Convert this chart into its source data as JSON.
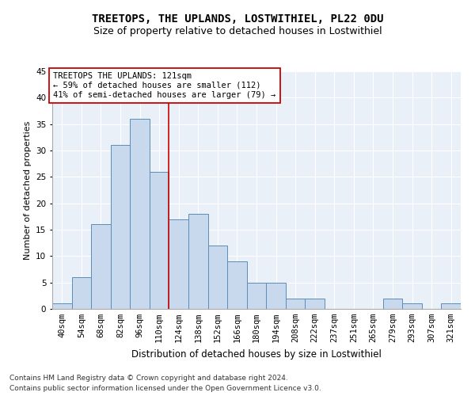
{
  "title": "TREETOPS, THE UPLANDS, LOSTWITHIEL, PL22 0DU",
  "subtitle": "Size of property relative to detached houses in Lostwithiel",
  "xlabel": "Distribution of detached houses by size in Lostwithiel",
  "ylabel": "Number of detached properties",
  "footer_line1": "Contains HM Land Registry data © Crown copyright and database right 2024.",
  "footer_line2": "Contains public sector information licensed under the Open Government Licence v3.0.",
  "bar_labels": [
    "40sqm",
    "54sqm",
    "68sqm",
    "82sqm",
    "96sqm",
    "110sqm",
    "124sqm",
    "138sqm",
    "152sqm",
    "166sqm",
    "180sqm",
    "194sqm",
    "208sqm",
    "222sqm",
    "237sqm",
    "251sqm",
    "265sqm",
    "279sqm",
    "293sqm",
    "307sqm",
    "321sqm"
  ],
  "bar_values": [
    1,
    6,
    16,
    31,
    36,
    26,
    17,
    18,
    12,
    9,
    5,
    5,
    2,
    2,
    0,
    0,
    0,
    2,
    1,
    0,
    1
  ],
  "bar_color": "#c9d9ed",
  "bar_edge_color": "#5b8db8",
  "vline_x": 5.5,
  "vline_color": "#cc0000",
  "annotation_text": "TREETOPS THE UPLANDS: 121sqm\n← 59% of detached houses are smaller (112)\n41% of semi-detached houses are larger (79) →",
  "annotation_box_color": "#ffffff",
  "annotation_box_edge_color": "#cc0000",
  "ylim": [
    0,
    45
  ],
  "yticks": [
    0,
    5,
    10,
    15,
    20,
    25,
    30,
    35,
    40,
    45
  ],
  "bg_color": "#eaf0f8",
  "plot_bg_color": "#eaf0f8",
  "title_fontsize": 10,
  "subtitle_fontsize": 9,
  "ylabel_fontsize": 8,
  "xlabel_fontsize": 8.5,
  "tick_fontsize": 7.5,
  "annotation_fontsize": 7.5,
  "footer_fontsize": 6.5
}
